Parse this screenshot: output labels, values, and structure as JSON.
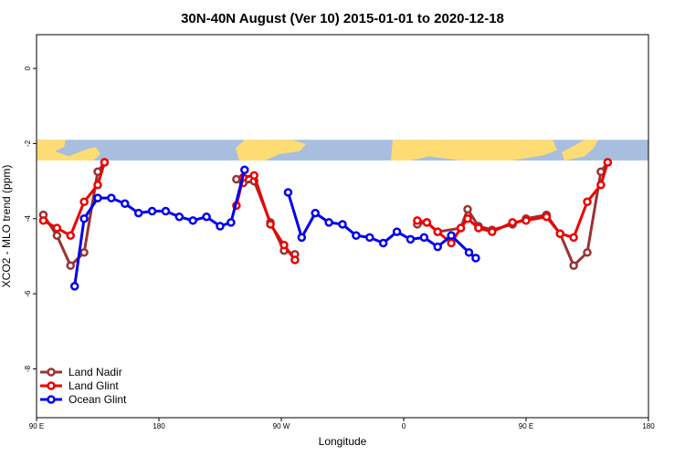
{
  "chart_data": {
    "type": "line",
    "title": "30N-40N August (Ver 10)   2015-01-01 to 2020-12-18",
    "xlabel": "Longitude",
    "ylabel": "XCO2 - MLO trend (ppm)",
    "xlim": [
      90,
      540
    ],
    "ylim": [
      -9.3,
      0.9
    ],
    "x_ticks": [
      {
        "value": 90,
        "label": "90 E"
      },
      {
        "value": 180,
        "label": "180"
      },
      {
        "value": 270,
        "label": "90 W"
      },
      {
        "value": 360,
        "label": "0"
      },
      {
        "value": 450,
        "label": "90 E"
      },
      {
        "value": 540,
        "label": "180"
      }
    ],
    "y_ticks": [
      {
        "value": 0,
        "label": "0"
      },
      {
        "value": -2,
        "label": "-2"
      },
      {
        "value": -4,
        "label": "-4"
      },
      {
        "value": -6,
        "label": "-6"
      },
      {
        "value": -8,
        "label": "-8"
      }
    ],
    "map_band": {
      "y_top": -1.9,
      "y_bottom": -2.45,
      "ocean_color": "#a8bede",
      "land_color": "#fedc74"
    },
    "series": [
      {
        "name": "Land Nadir",
        "color": "#993333",
        "segments": [
          [
            [
              95,
              -3.9
            ],
            [
              105,
              -4.45
            ],
            [
              115,
              -5.25
            ],
            [
              125,
              -4.9
            ],
            [
              135,
              -2.75
            ],
            [
              140,
              -2.5
            ]
          ],
          [
            [
              237,
              -2.95
            ],
            [
              242,
              -3.05
            ],
            [
              250,
              -3.0
            ],
            [
              262,
              -4.1
            ],
            [
              272,
              -4.85
            ],
            [
              280,
              -4.95
            ]
          ],
          [
            [
              370,
              -4.15
            ],
            [
              377,
              -4.1
            ],
            [
              385,
              -4.35
            ],
            [
              402,
              -4.25
            ],
            [
              407,
              -3.75
            ],
            [
              415,
              -4.2
            ],
            [
              425,
              -4.3
            ],
            [
              440,
              -4.15
            ],
            [
              450,
              -4.0
            ],
            [
              465,
              -3.9
            ],
            [
              475,
              -4.4
            ],
            [
              485,
              -5.25
            ],
            [
              495,
              -4.9
            ],
            [
              505,
              -2.75
            ],
            [
              510,
              -2.5
            ]
          ]
        ]
      },
      {
        "name": "Land Glint",
        "color": "#ee0000",
        "segments": [
          [
            [
              95,
              -4.05
            ],
            [
              105,
              -4.25
            ],
            [
              115,
              -4.45
            ],
            [
              125,
              -3.55
            ],
            [
              135,
              -3.1
            ],
            [
              140,
              -2.5
            ]
          ],
          [
            [
              237,
              -3.65
            ],
            [
              242,
              -2.9
            ],
            [
              250,
              -2.85
            ],
            [
              262,
              -4.15
            ],
            [
              272,
              -4.7
            ],
            [
              280,
              -5.1
            ]
          ],
          [
            [
              370,
              -4.05
            ],
            [
              377,
              -4.1
            ],
            [
              385,
              -4.35
            ],
            [
              395,
              -4.65
            ],
            [
              402,
              -4.25
            ],
            [
              407,
              -4.0
            ],
            [
              415,
              -4.25
            ],
            [
              425,
              -4.35
            ],
            [
              440,
              -4.1
            ],
            [
              450,
              -4.05
            ],
            [
              465,
              -3.95
            ],
            [
              475,
              -4.4
            ],
            [
              485,
              -4.5
            ],
            [
              495,
              -3.55
            ],
            [
              505,
              -3.1
            ],
            [
              510,
              -2.5
            ]
          ]
        ]
      },
      {
        "name": "Ocean Glint",
        "color": "#0000ee",
        "segments": [
          [
            [
              118,
              -5.8
            ],
            [
              125,
              -4.0
            ],
            [
              135,
              -3.45
            ],
            [
              145,
              -3.45
            ],
            [
              155,
              -3.6
            ],
            [
              165,
              -3.85
            ],
            [
              175,
              -3.8
            ],
            [
              185,
              -3.8
            ],
            [
              195,
              -3.95
            ],
            [
              205,
              -4.05
            ],
            [
              215,
              -3.95
            ],
            [
              225,
              -4.2
            ],
            [
              233,
              -4.1
            ],
            [
              243,
              -2.7
            ]
          ],
          [
            [
              275,
              -3.3
            ],
            [
              285,
              -4.5
            ],
            [
              295,
              -3.85
            ],
            [
              305,
              -4.1
            ],
            [
              315,
              -4.15
            ],
            [
              325,
              -4.45
            ],
            [
              335,
              -4.5
            ],
            [
              345,
              -4.65
            ],
            [
              355,
              -4.35
            ],
            [
              365,
              -4.55
            ],
            [
              375,
              -4.5
            ],
            [
              385,
              -4.75
            ],
            [
              395,
              -4.45
            ],
            [
              408,
              -4.9
            ],
            [
              413,
              -5.05
            ]
          ]
        ]
      }
    ],
    "legend": {
      "position": "bottom-left",
      "entries": [
        "Land Nadir",
        "Land Glint",
        "Ocean Glint"
      ]
    }
  }
}
